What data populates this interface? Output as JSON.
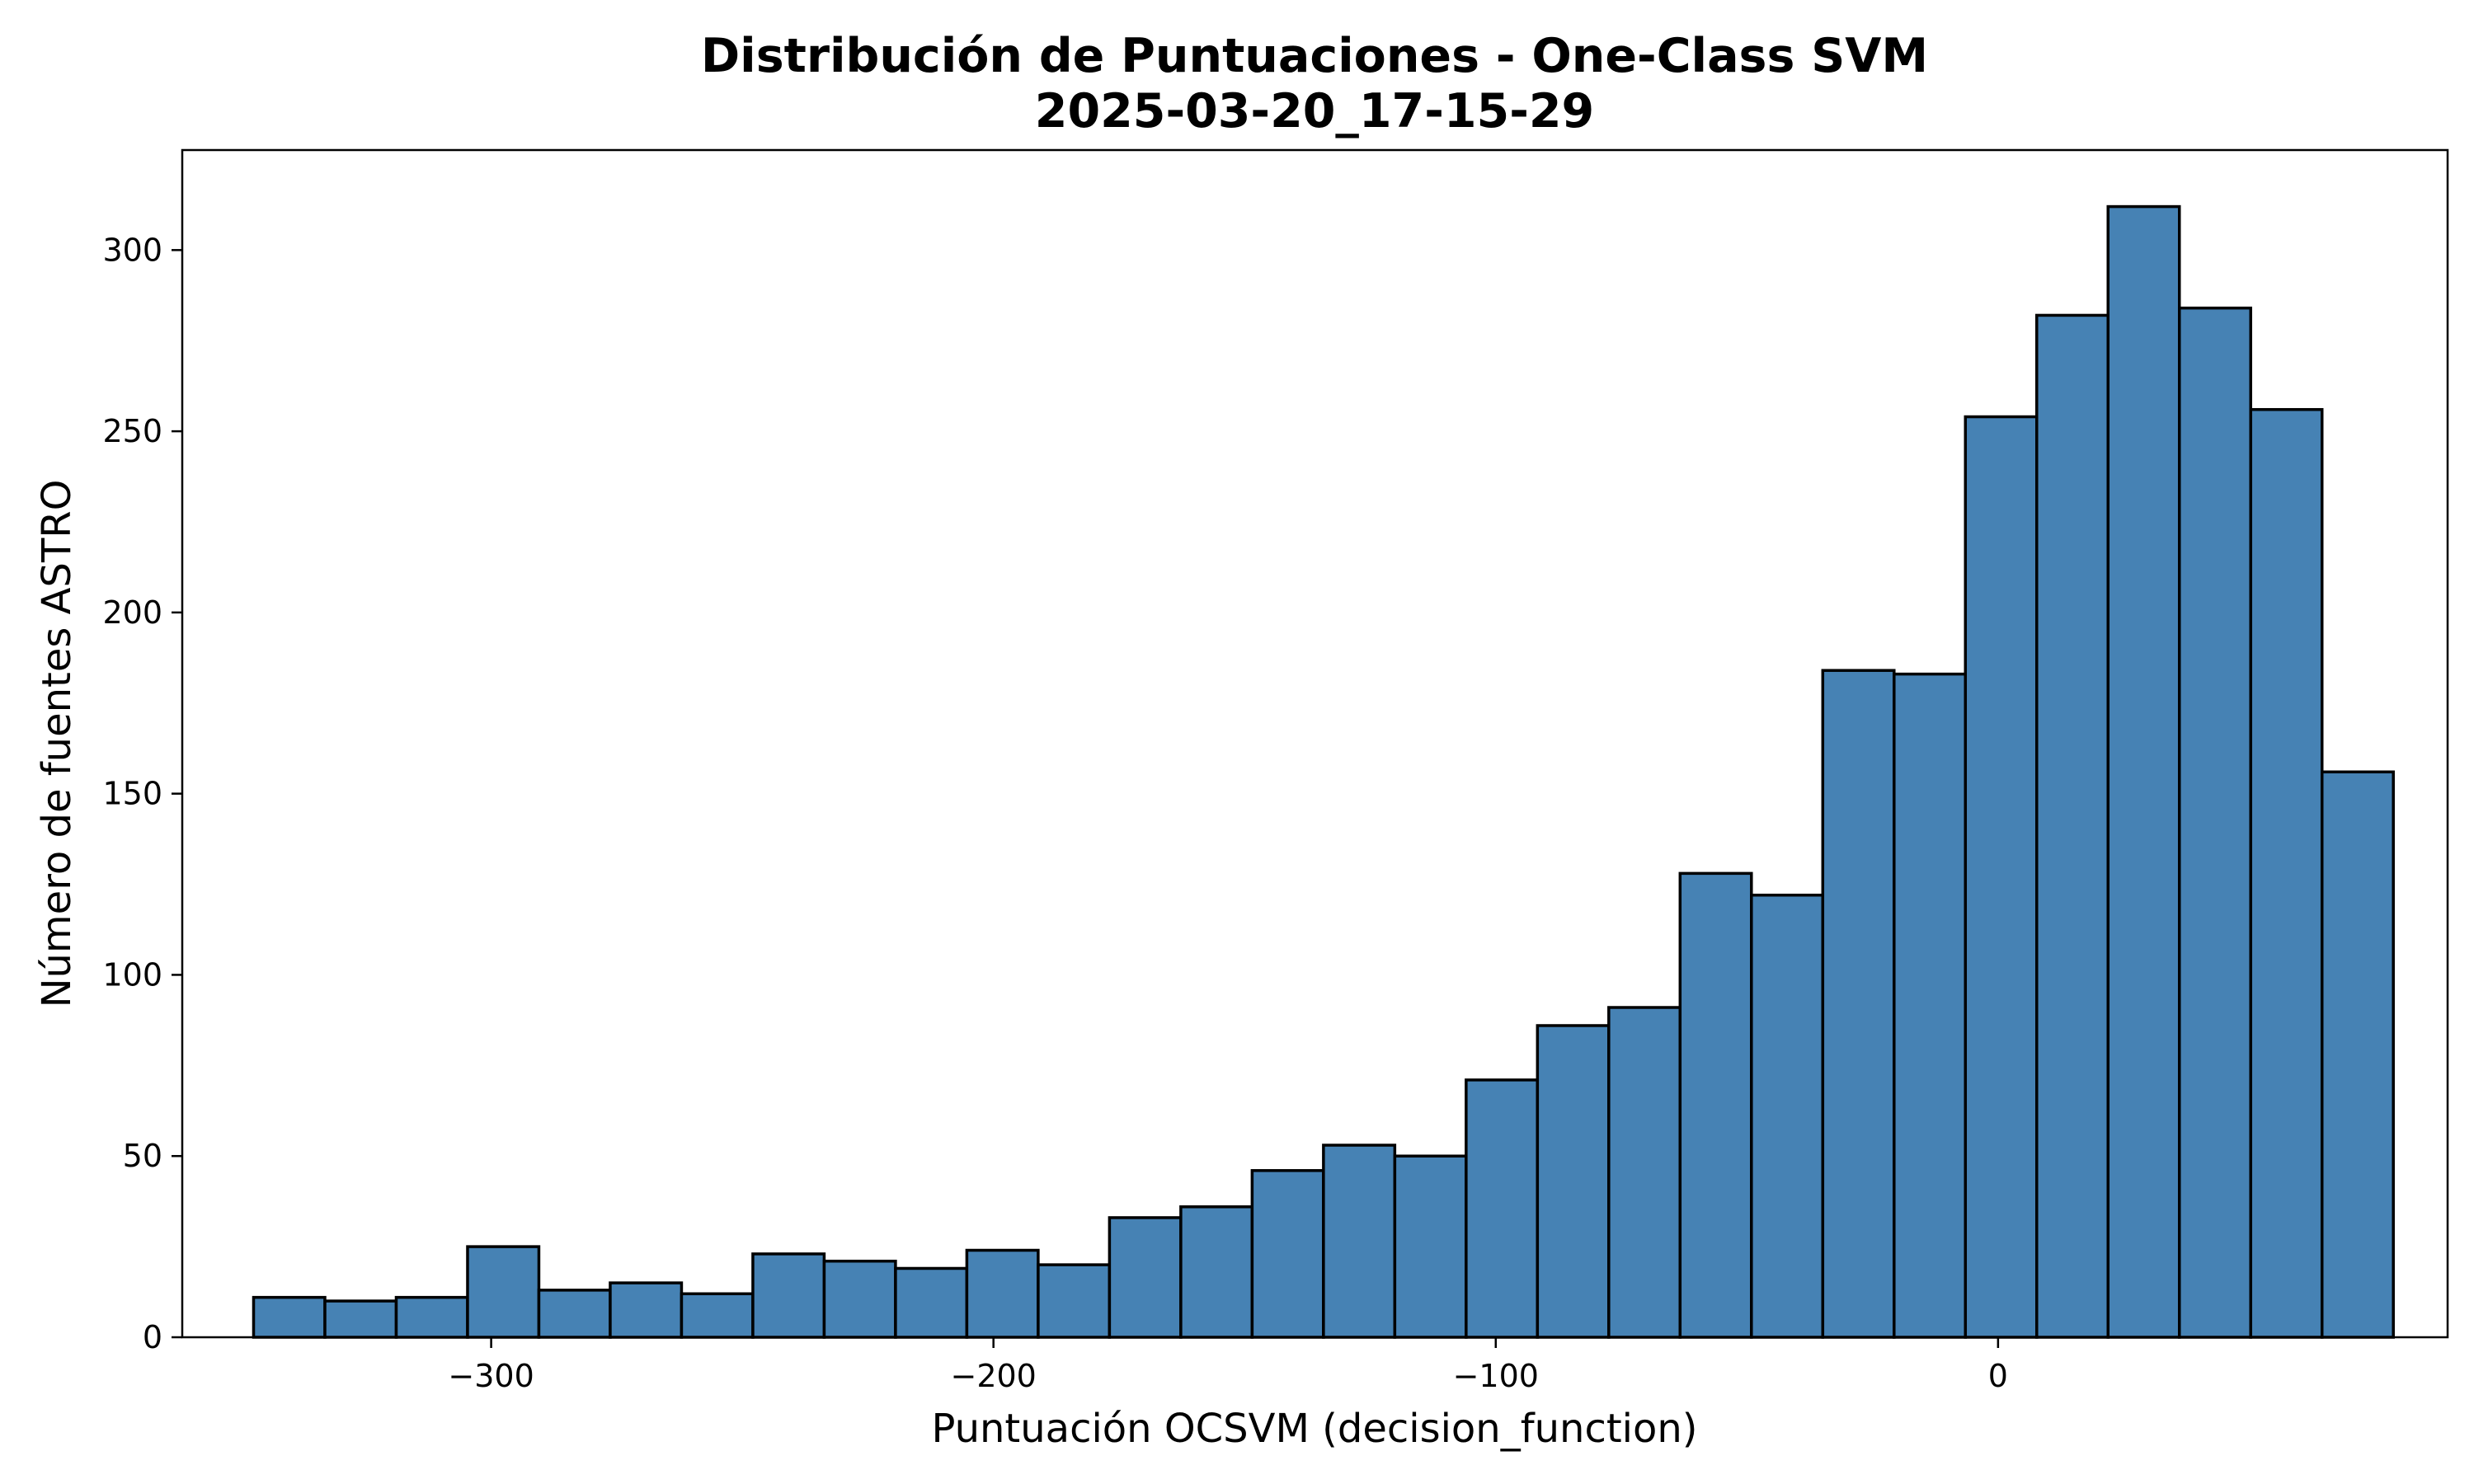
{
  "chart_data": {
    "type": "bar",
    "subtype": "histogram",
    "title": "Distribución de Puntuaciones - One-Class SVM",
    "subtitle": "2025-03-20_17-15-29",
    "xlabel": "Puntuación OCSVM (decision_function)",
    "ylabel": "Número de fuentes ASTRO",
    "xlim": [
      -361.5,
      89.5
    ],
    "ylim": [
      0,
      327.6
    ],
    "xticks": [
      -300,
      -200,
      -100,
      0
    ],
    "xtick_labels": [
      "−300",
      "−200",
      "−100",
      "0"
    ],
    "yticks": [
      0,
      50,
      100,
      150,
      200,
      250,
      300
    ],
    "ytick_labels": [
      "0",
      "50",
      "100",
      "150",
      "200",
      "250",
      "300"
    ],
    "bin_start": -347.3,
    "bin_width": 14.2,
    "values": [
      11,
      10,
      11,
      25,
      13,
      15,
      12,
      23,
      21,
      19,
      24,
      20,
      33,
      36,
      46,
      53,
      50,
      71,
      86,
      91,
      128,
      122,
      184,
      183,
      254,
      282,
      312,
      284,
      256,
      156
    ],
    "bar_color": "#4682b4",
    "edge_color": "#000000",
    "grid": false,
    "legend": "none"
  }
}
